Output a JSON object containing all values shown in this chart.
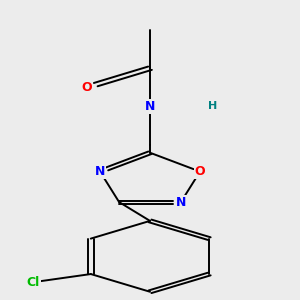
{
  "bg_color": "#ececec",
  "atom_colors": {
    "N": "#0000ff",
    "O": "#ff0000",
    "Cl": "#00bb00",
    "H": "#008080"
  },
  "figsize": [
    3.0,
    3.0
  ],
  "dpi": 100
}
